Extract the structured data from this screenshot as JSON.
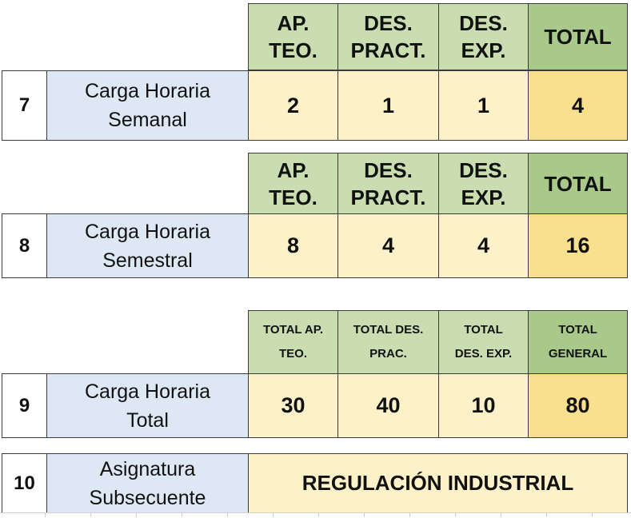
{
  "rows": [
    {
      "number": "7",
      "label": "Carga Horaria\nSemanal",
      "headers": [
        "AP.\nTEO.",
        "DES.\nPRACT.",
        "DES.\nEXP.",
        "TOTAL"
      ],
      "values": [
        "2",
        "1",
        "1",
        "4"
      ]
    },
    {
      "number": "8",
      "label": "Carga Horaria\nSemestral",
      "headers": [
        "AP.\nTEO.",
        "DES.\nPRACT.",
        "DES.\nEXP.",
        "TOTAL"
      ],
      "values": [
        "8",
        "4",
        "4",
        "16"
      ]
    },
    {
      "number": "9",
      "label": "Carga Horaria\nTotal",
      "headers": [
        "TOTAL AP.\nTEO.",
        "TOTAL DES.\nPRAC.",
        "TOTAL\nDES. EXP.",
        "TOTAL\nGENERAL"
      ],
      "values": [
        "30",
        "40",
        "10",
        "80"
      ]
    },
    {
      "number": "10",
      "label": "Asignatura\nSubsecuente",
      "value": "REGULACIÓN INDUSTRIAL"
    }
  ],
  "colors": {
    "header_green": "#c9ddb0",
    "header_green_dark": "#a8c98a",
    "label_blue": "#dde8f4",
    "value_yellow": "#fdf1c9",
    "total_gold": "#f8e08e"
  }
}
